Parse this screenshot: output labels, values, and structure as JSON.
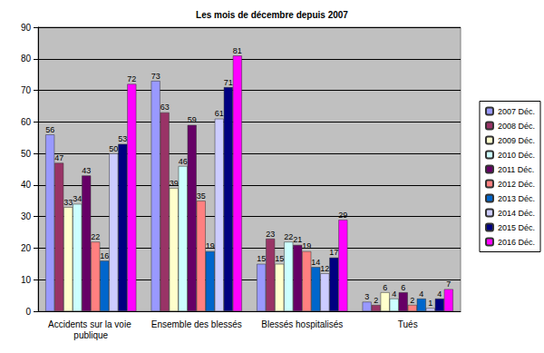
{
  "chart_data": {
    "type": "bar",
    "title": "Les mois de décembre depuis 2007",
    "categories": [
      "Accidents sur la voie publique",
      "Ensemble des blessés",
      "Blessés hospitalisés",
      "Tués"
    ],
    "series": [
      {
        "name": "2007 Déc.",
        "color": "#9999ff",
        "values": [
          56,
          73,
          15,
          3
        ]
      },
      {
        "name": "2008 Déc.",
        "color": "#993366",
        "values": [
          47,
          63,
          23,
          2
        ]
      },
      {
        "name": "2009 Déc.",
        "color": "#ffffcc",
        "values": [
          33,
          39,
          15,
          6
        ]
      },
      {
        "name": "2010 Déc.",
        "color": "#ccffff",
        "values": [
          34,
          46,
          22,
          4
        ]
      },
      {
        "name": "2011 Déc.",
        "color": "#660066",
        "values": [
          43,
          59,
          21,
          6
        ]
      },
      {
        "name": "2012 Déc.",
        "color": "#ff8080",
        "values": [
          22,
          35,
          19,
          2
        ]
      },
      {
        "name": "2013 Déc.",
        "color": "#0066cc",
        "values": [
          16,
          19,
          14,
          4
        ]
      },
      {
        "name": "2014 Déc.",
        "color": "#ccccff",
        "values": [
          50,
          61,
          12,
          1
        ]
      },
      {
        "name": "2015 Déc.",
        "color": "#000080",
        "values": [
          53,
          71,
          17,
          4
        ]
      },
      {
        "name": "2016 Déc.",
        "color": "#ff00ff",
        "values": [
          72,
          81,
          29,
          7
        ]
      }
    ],
    "ylim": [
      0,
      90
    ],
    "yticks": [
      0,
      10,
      20,
      30,
      40,
      50,
      60,
      70,
      80,
      90
    ],
    "grid": true,
    "legend": "right",
    "data_labels": true
  }
}
